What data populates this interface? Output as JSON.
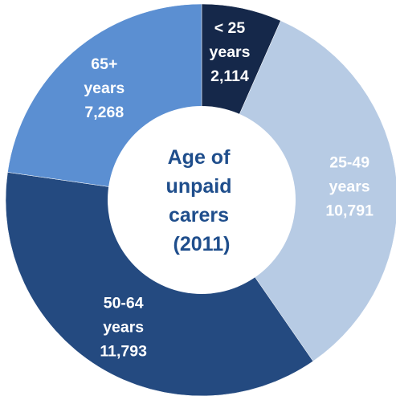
{
  "chart_data": {
    "type": "pie",
    "title_lines": [
      "Age of",
      "unpaid",
      "carers",
      "(2011)"
    ],
    "slices": [
      {
        "label_lines": [
          "< 25",
          "years",
          "2,114"
        ],
        "category": "< 25 years",
        "value": 2114,
        "color": "#15284a"
      },
      {
        "label_lines": [
          "25-49",
          "years",
          "10,791"
        ],
        "category": "25-49 years",
        "value": 10791,
        "color": "#b7cbe4"
      },
      {
        "label_lines": [
          "50-64",
          "years",
          "11,793"
        ],
        "category": "50-64 years",
        "value": 11793,
        "color": "#244a80"
      },
      {
        "label_lines": [
          "65+",
          "years",
          "7,268"
        ],
        "category": "65+ years",
        "value": 7268,
        "color": "#5b8fd2"
      }
    ]
  }
}
